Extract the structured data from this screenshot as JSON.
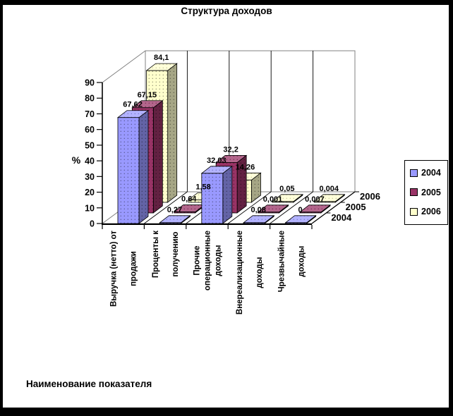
{
  "frame": {
    "background": "#FFFFFF",
    "border_color": "#000000"
  },
  "chart_data": {
    "type": "bar",
    "projection": "3d",
    "title": "Структура доходов",
    "xlabel": "Наименование показателя",
    "ylabel": "%",
    "ylim": [
      0,
      90
    ],
    "ytick_step": 10,
    "ytick_labels": [
      "0",
      "10",
      "20",
      "30",
      "40",
      "50",
      "60",
      "70",
      "80",
      "90"
    ],
    "categories": [
      "Выручка (нетто) от продажи",
      "Проценты к получению",
      "Прочие операционные доходы",
      "Внереализационные доходы",
      "Чрезвычайные доходы"
    ],
    "category_label_lines": [
      [
        "Выручка (нетто) от",
        "продажи"
      ],
      [
        "Проценты к",
        "получению"
      ],
      [
        "Прочие",
        "операционные",
        "доходы"
      ],
      [
        "Внереализационные",
        "доходы"
      ],
      [
        "Чрезвычайные",
        "доходы"
      ]
    ],
    "series": [
      {
        "name": "2004",
        "color": "#9999FF",
        "values": [
          67.62,
          0.27,
          32.03,
          0.08,
          0
        ],
        "value_labels": [
          "67,62",
          "0,27",
          "32,03",
          "0,08",
          "0"
        ]
      },
      {
        "name": "2005",
        "color": "#993366",
        "values": [
          67.15,
          0.64,
          32.2,
          0.001,
          0.007
        ],
        "value_labels": [
          "67,15",
          "0,64",
          "32,2",
          "0,001",
          "0,007"
        ]
      },
      {
        "name": "2006",
        "color": "#FFFFCC",
        "values": [
          84.1,
          1.58,
          14.26,
          0.05,
          0.004
        ],
        "value_labels": [
          "84,1",
          "1,58",
          "14,26",
          "0,05",
          "0,004"
        ]
      }
    ],
    "depth_axis_labels": [
      "2004",
      "2005",
      "2006"
    ],
    "legend": {
      "position": "right",
      "entries": [
        "2004",
        "2005",
        "2006"
      ]
    },
    "grid": {
      "back_wall_vertical_lines": true,
      "horizontal_lines": false
    }
  }
}
